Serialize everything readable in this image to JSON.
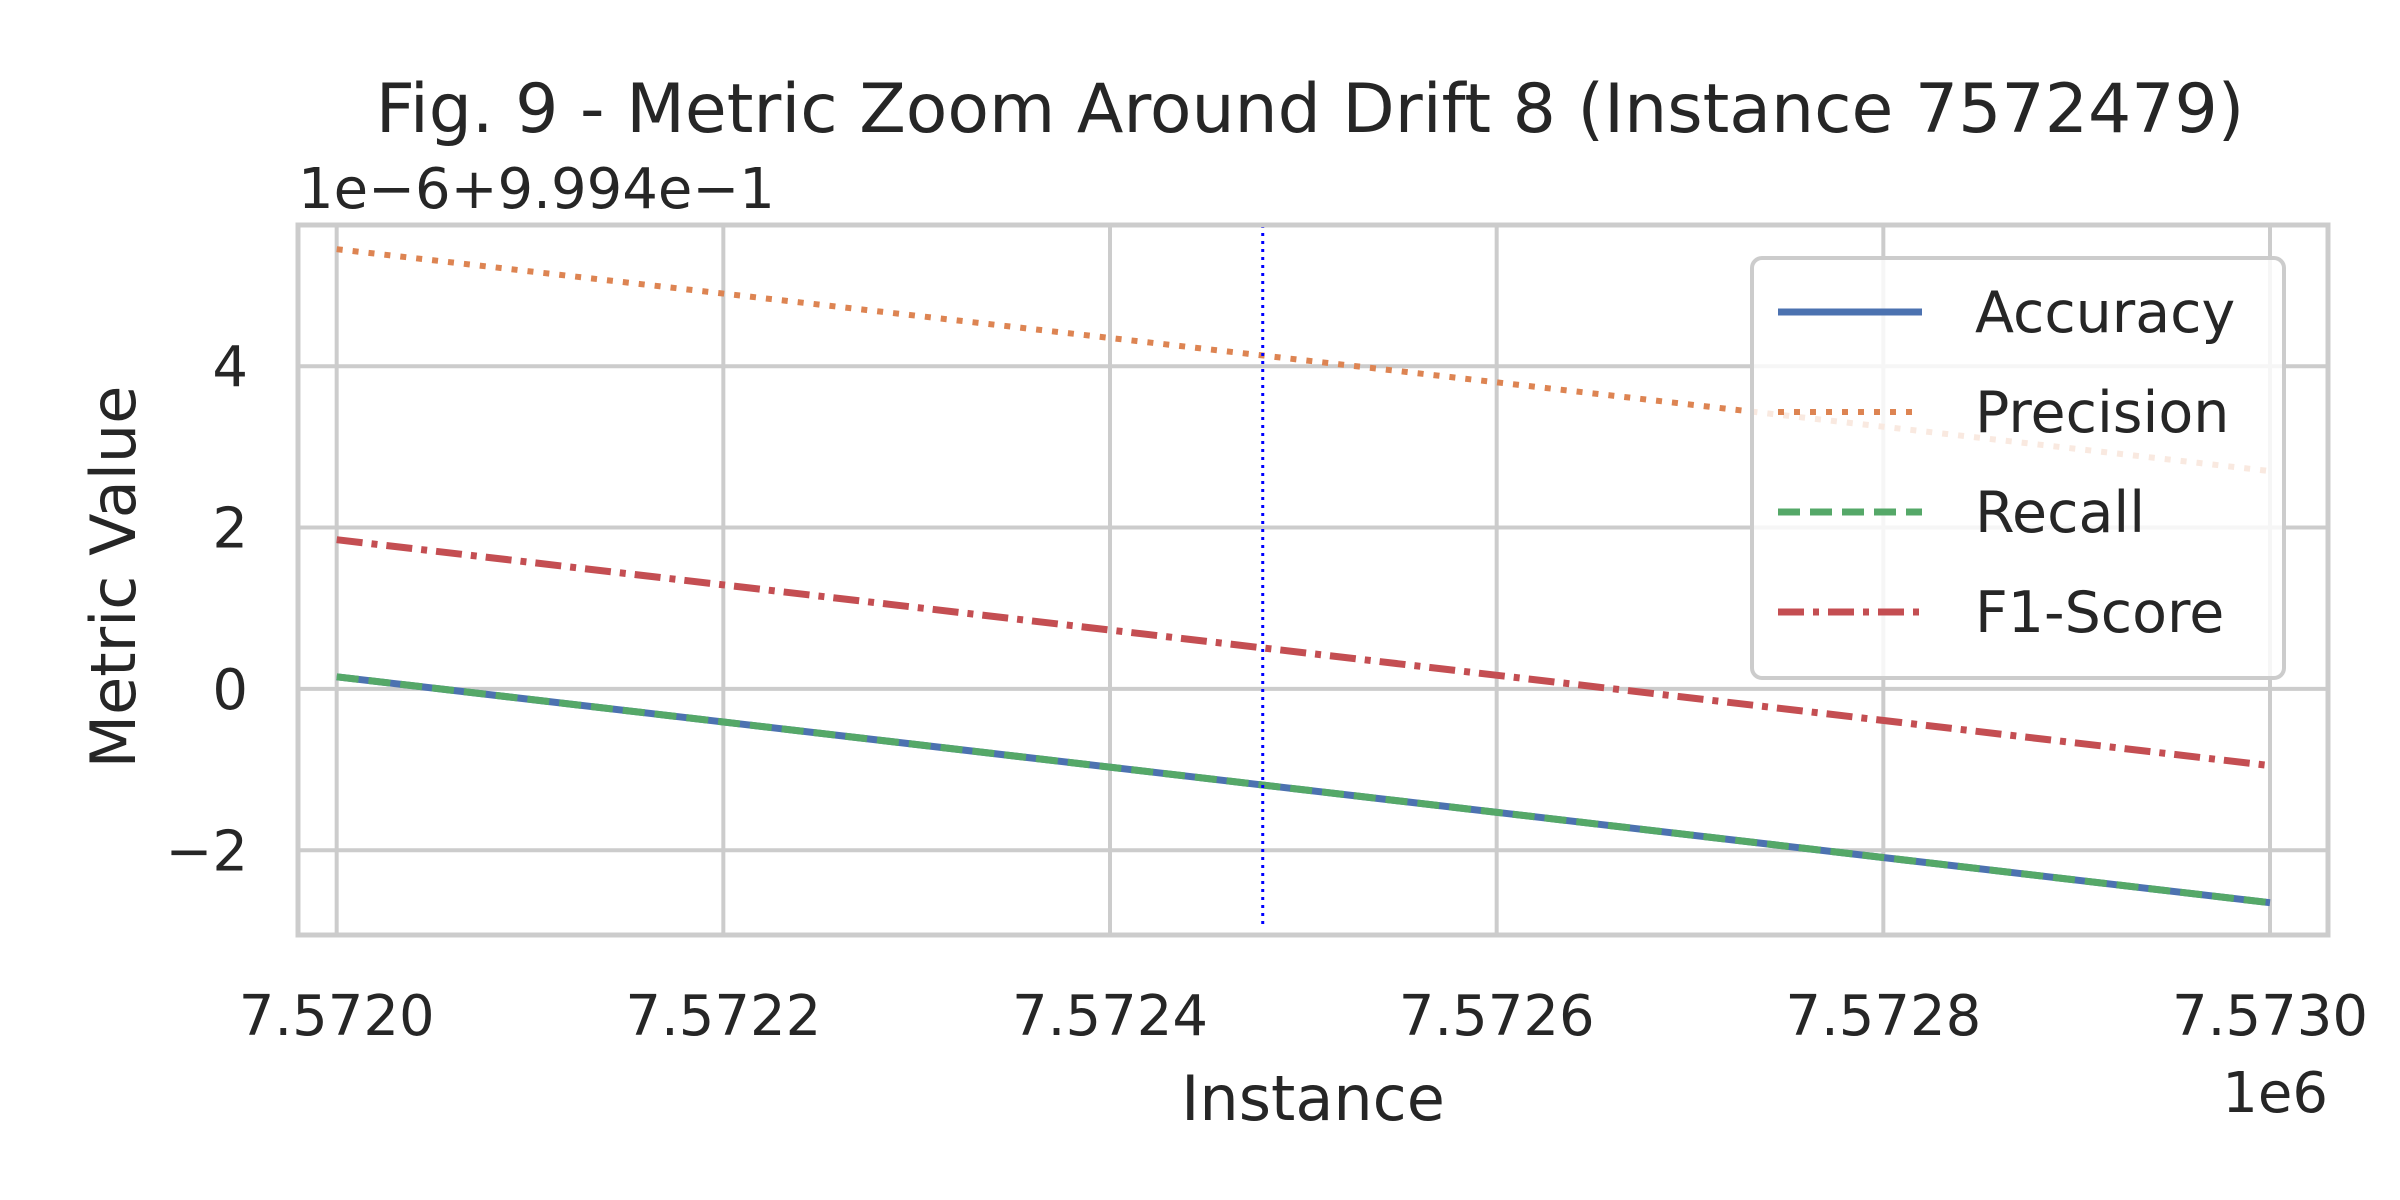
{
  "chart_data": {
    "type": "line",
    "title": "Fig. 9 - Metric Zoom Around Drift 8 (Instance 7572479)",
    "xlabel": "Instance",
    "ylabel": "Metric Value",
    "x_offset_label": "1e6",
    "y_offset_label": "1e−6+9.994e−1",
    "xlim": [
      7.57198,
      7.57303
    ],
    "ylim": [
      -3.05,
      5.75
    ],
    "x_ticks": [
      {
        "value": 7.572,
        "label": "7.5720"
      },
      {
        "value": 7.5722,
        "label": "7.5722"
      },
      {
        "value": 7.5724,
        "label": "7.5724"
      },
      {
        "value": 7.5726,
        "label": "7.5726"
      },
      {
        "value": 7.5728,
        "label": "7.5728"
      },
      {
        "value": 7.573,
        "label": "7.5730"
      }
    ],
    "y_ticks": [
      {
        "value": -2,
        "label": "−2"
      },
      {
        "value": 0,
        "label": "0"
      },
      {
        "value": 2,
        "label": "2"
      },
      {
        "value": 4,
        "label": "4"
      }
    ],
    "grid": true,
    "legend_position": "top-right",
    "drift_line": {
      "x": 7.572479,
      "color": "#0000ff",
      "style": "dotted"
    },
    "series": [
      {
        "name": "Accuracy",
        "color": "#4c72b0",
        "style": "solid",
        "x": [
          7.572,
          7.573
        ],
        "y": [
          0.15,
          -2.65
        ]
      },
      {
        "name": "Precision",
        "color": "#dd8452",
        "style": "dotted",
        "x": [
          7.572,
          7.573
        ],
        "y": [
          5.45,
          2.7
        ]
      },
      {
        "name": "Recall",
        "color": "#55a868",
        "style": "dashed",
        "x": [
          7.572,
          7.573
        ],
        "y": [
          0.15,
          -2.65
        ]
      },
      {
        "name": "F1-Score",
        "color": "#c44e52",
        "style": "dashdot",
        "x": [
          7.572,
          7.573
        ],
        "y": [
          1.85,
          -0.95
        ]
      }
    ]
  }
}
